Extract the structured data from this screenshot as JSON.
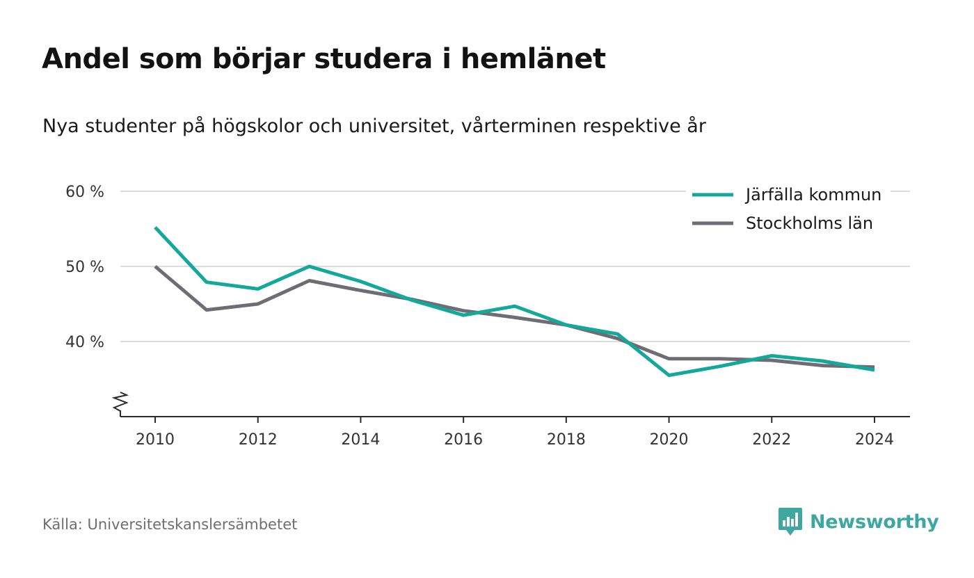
{
  "title": "Andel som börjar studera i hemlänet",
  "subtitle": "Nya studenter på högskolor och universitet, vårterminen respektive år",
  "source": "Källa: Universitetskanslersämbetet",
  "brand": {
    "name": "Newsworthy",
    "icon": "newsworthy-logo-icon",
    "color": "#3ea8a0"
  },
  "chart_data": {
    "type": "line",
    "title": "Andel som börjar studera i hemlänet",
    "subtitle": "Nya studenter på högskolor och universitet, vårterminen respektive år",
    "x": [
      2010,
      2011,
      2012,
      2013,
      2014,
      2015,
      2016,
      2017,
      2018,
      2019,
      2020,
      2021,
      2022,
      2023,
      2024
    ],
    "x_ticks": [
      2010,
      2012,
      2014,
      2016,
      2018,
      2020,
      2022,
      2024
    ],
    "y_ticks": [
      40,
      50,
      60
    ],
    "y_tick_labels": [
      "40 %",
      "50 %",
      "60 %"
    ],
    "ylim": [
      30,
      60
    ],
    "y_axis_break": true,
    "grid": true,
    "legend_position": "top-right",
    "series": [
      {
        "name": "Järfälla kommun",
        "color": "#12a89a",
        "values": [
          55.2,
          47.9,
          47.0,
          50.0,
          48.0,
          45.5,
          43.5,
          44.7,
          42.2,
          41.0,
          35.5,
          36.7,
          38.1,
          37.4,
          36.2
        ]
      },
      {
        "name": "Stockholms län",
        "color": "#6e6d75",
        "values": [
          50.0,
          44.2,
          45.0,
          48.1,
          46.8,
          45.6,
          44.1,
          43.2,
          42.2,
          40.4,
          37.7,
          37.7,
          37.5,
          36.8,
          36.6
        ]
      }
    ]
  }
}
